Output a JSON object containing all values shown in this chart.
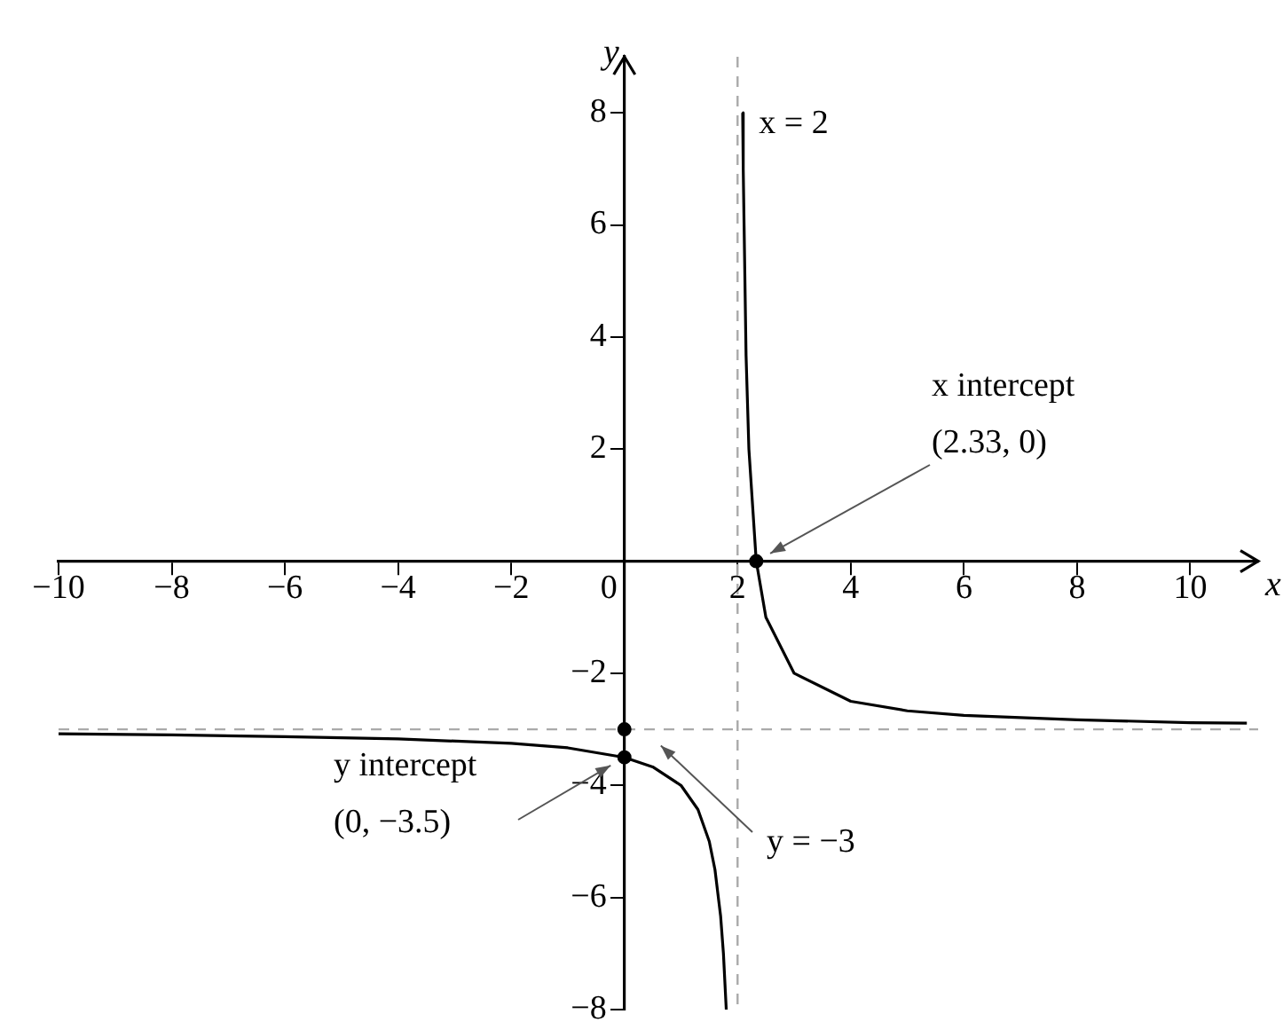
{
  "chart_data": {
    "type": "line",
    "xlabel": "x",
    "ylabel": "y",
    "xlim": [
      -10,
      11.2
    ],
    "ylim": [
      -8,
      9
    ],
    "xticks": [
      {
        "value": -10,
        "label": "−10"
      },
      {
        "value": -8,
        "label": "−8"
      },
      {
        "value": -6,
        "label": "−6"
      },
      {
        "value": -4,
        "label": "−4"
      },
      {
        "value": -2,
        "label": "−2"
      },
      0,
      2,
      4,
      6,
      8,
      10
    ],
    "yticks": [
      {
        "value": -8,
        "label": "−8"
      },
      {
        "value": -6,
        "label": "−6"
      },
      {
        "value": -4,
        "label": "−4"
      },
      {
        "value": -2,
        "label": "−2"
      },
      2,
      4,
      6,
      8
    ],
    "series": [
      {
        "type": "line",
        "color": "#000000",
        "x": [
          -10,
          -8,
          -6,
          -4,
          -2,
          -1,
          0,
          0.5,
          1,
          1.3,
          1.5,
          1.6,
          1.7,
          1.75,
          1.8,
          2,
          2.09,
          2.1,
          2.15,
          2.2,
          2.33,
          2.5,
          3,
          4,
          5,
          6,
          8,
          10,
          11
        ],
        "values": [
          -3.08,
          -3.1,
          -3.13,
          -3.17,
          -3.25,
          -3.33,
          -3.5,
          -3.67,
          -4,
          -4.43,
          -5,
          -5.5,
          -6.33,
          -7,
          -8,
          null,
          8,
          7,
          3.67,
          2,
          0,
          -1,
          -2,
          -2.5,
          -2.67,
          -2.75,
          -2.83,
          -2.88,
          -2.89
        ]
      },
      {
        "type": "scatter",
        "color": "#000000",
        "marker": "circle",
        "x": [
          2.33,
          0,
          0
        ],
        "values": [
          0,
          -3.5,
          -3
        ]
      }
    ],
    "ref_lines": [
      {
        "axis": "x",
        "value": 2,
        "label": "x = 2",
        "color": "#aaaaaa",
        "line_style": "dashed"
      },
      {
        "axis": "y",
        "value": -3,
        "label": "y = −3",
        "color": "#aaaaaa",
        "line_style": "dashed"
      }
    ],
    "annotations": [
      "x intercept\n(2.33, 0)",
      "y intercept\n(0, −3.5)"
    ],
    "grid": false,
    "legend": false,
    "line_style": "solid",
    "marker": "none"
  }
}
